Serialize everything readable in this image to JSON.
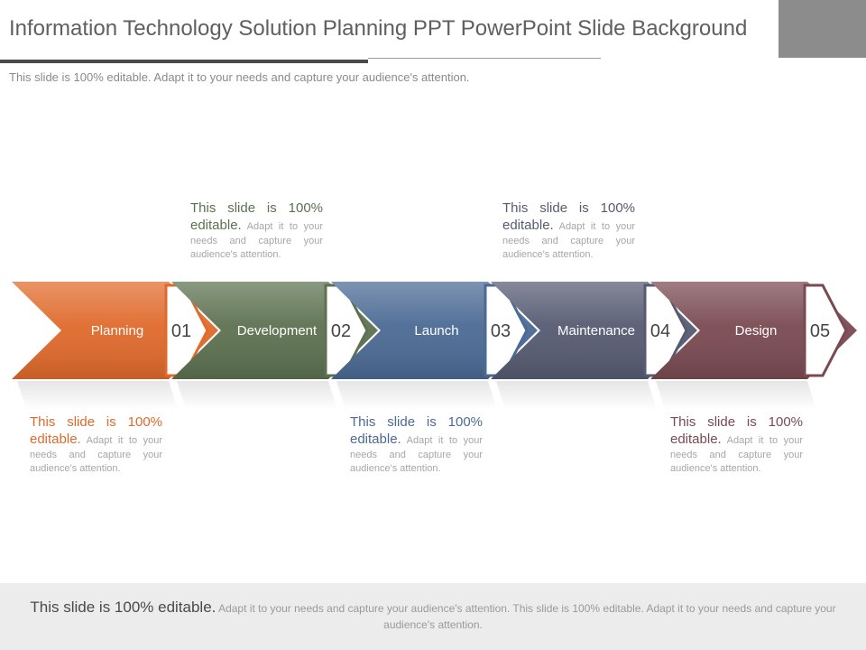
{
  "title": "Information Technology Solution Planning PPT PowerPoint Slide Background",
  "subtitle": "This slide is 100% editable. Adapt it to your needs and capture your audience's attention.",
  "stages": [
    {
      "label": "Planning",
      "number": "01",
      "color": "#e06a2c"
    },
    {
      "label": "Development",
      "number": "02",
      "color": "#5d7150"
    },
    {
      "label": "Launch",
      "number": "03",
      "color": "#4b6a94"
    },
    {
      "label": "Maintenance",
      "number": "04",
      "color": "#565b72"
    },
    {
      "label": "Design",
      "number": "05",
      "color": "#7a4a52"
    }
  ],
  "notes": [
    {
      "lead": "This slide is 100% editable.",
      "body": " Adapt it to your needs and capture your audience's attention.",
      "color": "#e06a2c"
    },
    {
      "lead": "This slide is 100% editable.",
      "body": " Adapt it to your needs and capture your audience's attention.",
      "color": "#5d7150"
    },
    {
      "lead": "This slide is 100% editable.",
      "body": " Adapt it to your needs and capture your audience's attention.",
      "color": "#4b6a94"
    },
    {
      "lead": "This slide is 100% editable.",
      "body": " Adapt it to your needs and capture your audience's attention.",
      "color": "#565b72"
    },
    {
      "lead": "This slide is 100% editable.",
      "body": " Adapt it to your needs and capture your audience's attention.",
      "color": "#7a4a52"
    }
  ],
  "footer": {
    "lead": "This slide is 100% editable.",
    "body": " Adapt it to your needs and capture your audience's attention. This slide is 100% editable. Adapt it to your needs and capture your audience's attention."
  }
}
